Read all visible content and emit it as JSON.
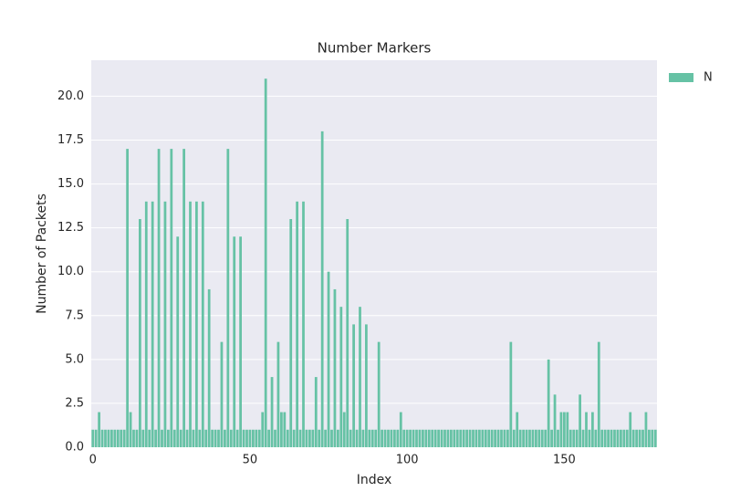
{
  "chart_data": {
    "type": "bar",
    "title": "Number Markers",
    "xlabel": "Index",
    "ylabel": "Number of Packets",
    "categories": [
      0,
      1,
      2,
      3,
      4,
      5,
      6,
      7,
      8,
      9,
      10,
      11,
      12,
      13,
      14,
      15,
      16,
      17,
      18,
      19,
      20,
      21,
      22,
      23,
      24,
      25,
      26,
      27,
      28,
      29,
      30,
      31,
      32,
      33,
      34,
      35,
      36,
      37,
      38,
      39,
      40,
      41,
      42,
      43,
      44,
      45,
      46,
      47,
      48,
      49,
      50,
      51,
      52,
      53,
      54,
      55,
      56,
      57,
      58,
      59,
      60,
      61,
      62,
      63,
      64,
      65,
      66,
      67,
      68,
      69,
      70,
      71,
      72,
      73,
      74,
      75,
      76,
      77,
      78,
      79,
      80,
      81,
      82,
      83,
      84,
      85,
      86,
      87,
      88,
      89,
      90,
      91,
      92,
      93,
      94,
      95,
      96,
      97,
      98,
      99,
      100,
      101,
      102,
      103,
      104,
      105,
      106,
      107,
      108,
      109,
      110,
      111,
      112,
      113,
      114,
      115,
      116,
      117,
      118,
      119,
      120,
      121,
      122,
      123,
      124,
      125,
      126,
      127,
      128,
      129,
      130,
      131,
      132,
      133,
      134,
      135,
      136,
      137,
      138,
      139,
      140,
      141,
      142,
      143,
      144,
      145,
      146,
      147,
      148,
      149,
      150,
      151,
      152,
      153,
      154,
      155,
      156,
      157,
      158,
      159,
      160,
      161,
      162,
      163,
      164,
      165,
      166,
      167,
      168,
      169,
      170,
      171,
      172,
      173,
      174,
      175,
      176,
      177,
      178,
      179
    ],
    "series": [
      {
        "name": "N",
        "color": "#66c2a5",
        "values": [
          1,
          1,
          2,
          1,
          1,
          1,
          1,
          1,
          1,
          1,
          1,
          17,
          2,
          1,
          1,
          13,
          1,
          14,
          1,
          14,
          1,
          17,
          1,
          14,
          1,
          17,
          1,
          12,
          1,
          17,
          1,
          14,
          1,
          14,
          1,
          14,
          1,
          9,
          1,
          1,
          1,
          6,
          1,
          17,
          1,
          12,
          1,
          12,
          1,
          1,
          1,
          1,
          1,
          1,
          2,
          21,
          1,
          4,
          1,
          6,
          2,
          2,
          1,
          13,
          1,
          14,
          1,
          14,
          1,
          1,
          1,
          4,
          1,
          18,
          1,
          10,
          1,
          9,
          1,
          8,
          2,
          13,
          1,
          7,
          1,
          8,
          1,
          7,
          1,
          1,
          1,
          6,
          1,
          1,
          1,
          1,
          1,
          1,
          2,
          1,
          1,
          1,
          1,
          1,
          1,
          1,
          1,
          1,
          1,
          1,
          1,
          1,
          1,
          1,
          1,
          1,
          1,
          1,
          1,
          1,
          1,
          1,
          1,
          1,
          1,
          1,
          1,
          1,
          1,
          1,
          1,
          1,
          1,
          6,
          1,
          2,
          1,
          1,
          1,
          1,
          1,
          1,
          1,
          1,
          1,
          5,
          1,
          3,
          1,
          2,
          2,
          2,
          1,
          1,
          1,
          3,
          1,
          2,
          1,
          2,
          1,
          6,
          1,
          1,
          1,
          1,
          1,
          1,
          1,
          1,
          1,
          2,
          1,
          1,
          1,
          1,
          2,
          1,
          1,
          1
        ]
      }
    ],
    "xlim": [
      -0.5,
      179.5
    ],
    "xticks": [
      0,
      50,
      100,
      150
    ],
    "ylim": [
      0,
      22.05
    ],
    "yticks": [
      {
        "value": 0,
        "label": "0.0"
      },
      2.5,
      {
        "value": 5,
        "label": "5.0"
      },
      7.5,
      {
        "value": 10,
        "label": "10.0"
      },
      12.5,
      {
        "value": 15,
        "label": "15.0"
      },
      17.5,
      {
        "value": 20,
        "label": "20.0"
      }
    ],
    "grid": "y",
    "legend": "upper right outside"
  }
}
